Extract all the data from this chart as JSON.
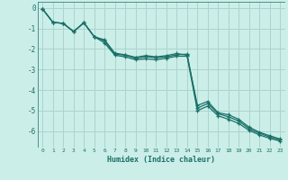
{
  "xlabel": "Humidex (Indice chaleur)",
  "bg_color": "#cceee8",
  "grid_color": "#aad4ce",
  "line_color": "#1a7068",
  "xlim": [
    -0.5,
    23.5
  ],
  "ylim": [
    -6.8,
    0.3
  ],
  "yticks": [
    0,
    -1,
    -2,
    -3,
    -4,
    -5,
    -6
  ],
  "xticks": [
    0,
    1,
    2,
    3,
    4,
    5,
    6,
    7,
    8,
    9,
    10,
    11,
    12,
    13,
    14,
    15,
    16,
    17,
    18,
    19,
    20,
    21,
    22,
    23
  ],
  "series1_x": [
    0,
    1,
    2,
    3,
    4,
    5,
    6,
    7,
    8,
    9,
    10,
    11,
    12,
    13,
    14,
    15,
    16,
    17,
    18,
    19,
    20,
    21,
    22,
    23
  ],
  "series1_y": [
    -0.05,
    -0.7,
    -0.75,
    -1.15,
    -0.72,
    -1.4,
    -1.6,
    -2.25,
    -2.3,
    -2.45,
    -2.38,
    -2.42,
    -2.38,
    -2.28,
    -2.25,
    -4.88,
    -4.65,
    -5.15,
    -5.3,
    -5.5,
    -5.88,
    -6.1,
    -6.28,
    -6.42
  ],
  "series2_x": [
    0,
    1,
    2,
    3,
    4,
    5,
    6,
    7,
    8,
    9,
    10,
    11,
    12,
    13,
    14,
    15,
    16,
    17,
    18,
    19,
    20,
    21,
    22,
    23
  ],
  "series2_y": [
    -0.05,
    -0.7,
    -0.75,
    -1.15,
    -0.72,
    -1.4,
    -1.7,
    -2.3,
    -2.38,
    -2.52,
    -2.48,
    -2.52,
    -2.45,
    -2.35,
    -2.35,
    -5.0,
    -4.78,
    -5.25,
    -5.42,
    -5.62,
    -5.96,
    -6.18,
    -6.35,
    -6.48
  ],
  "series3_x": [
    0,
    1,
    2,
    3,
    4,
    5,
    6,
    7,
    8,
    9,
    10,
    11,
    12,
    13,
    14,
    15,
    16,
    17,
    18,
    19,
    20,
    21,
    22,
    23
  ],
  "series3_y": [
    -0.05,
    -0.7,
    -0.75,
    -1.15,
    -0.72,
    -1.4,
    -1.55,
    -2.2,
    -2.28,
    -2.4,
    -2.32,
    -2.38,
    -2.32,
    -2.22,
    -2.3,
    -4.75,
    -4.55,
    -5.1,
    -5.2,
    -5.42,
    -5.8,
    -6.05,
    -6.22,
    -6.38
  ]
}
